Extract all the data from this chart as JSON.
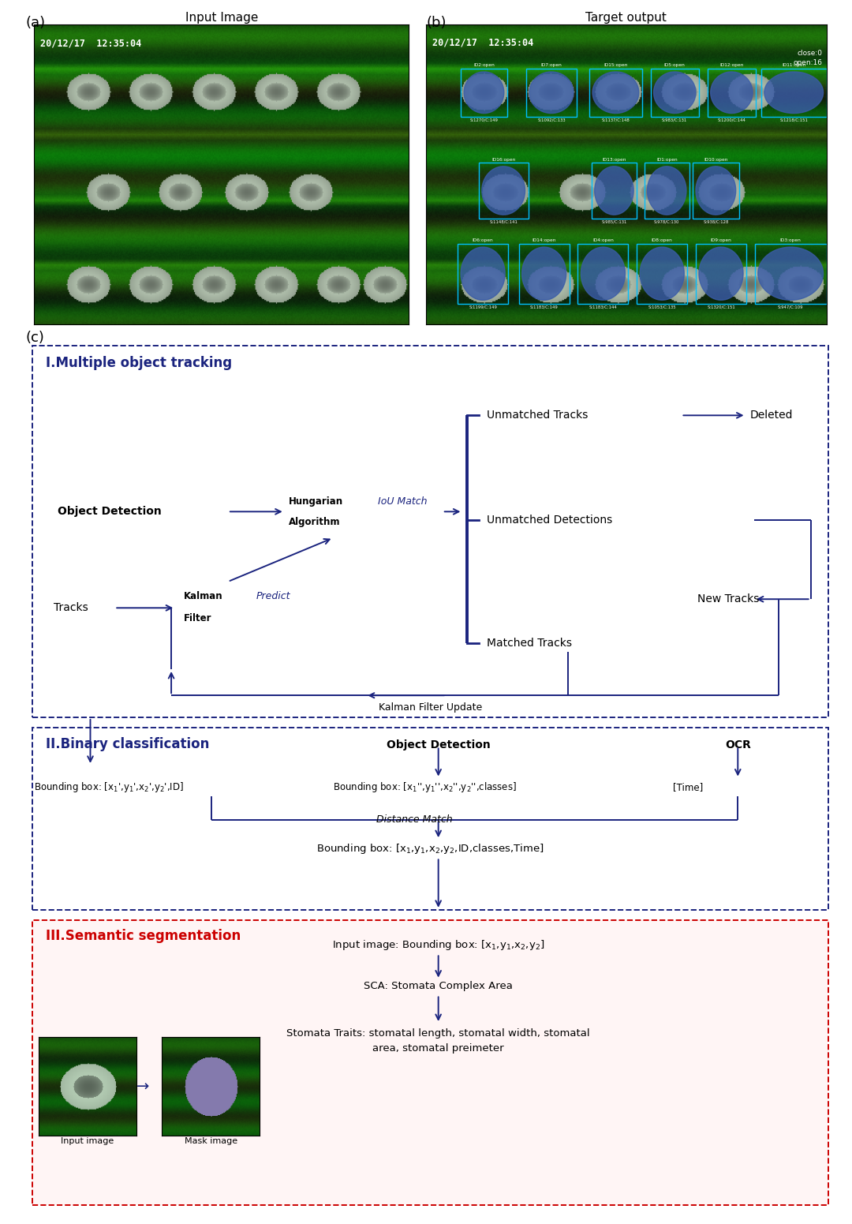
{
  "fig_width": 10.8,
  "fig_height": 15.51,
  "bg_color": "#ffffff",
  "dark_blue": "#1a237e",
  "red_dashed": "#cc0000",
  "panel_a_label": "(a)",
  "panel_b_label": "(b)",
  "panel_c_label": "(c)",
  "input_image_title": "Input Image",
  "target_output_title": "Target output",
  "timestamp": "20/12/17  12:35:04",
  "section1_title": "I.Multiple object tracking",
  "section2_title": "II.Binary classification",
  "section3_title": "III.Semantic segmentation"
}
